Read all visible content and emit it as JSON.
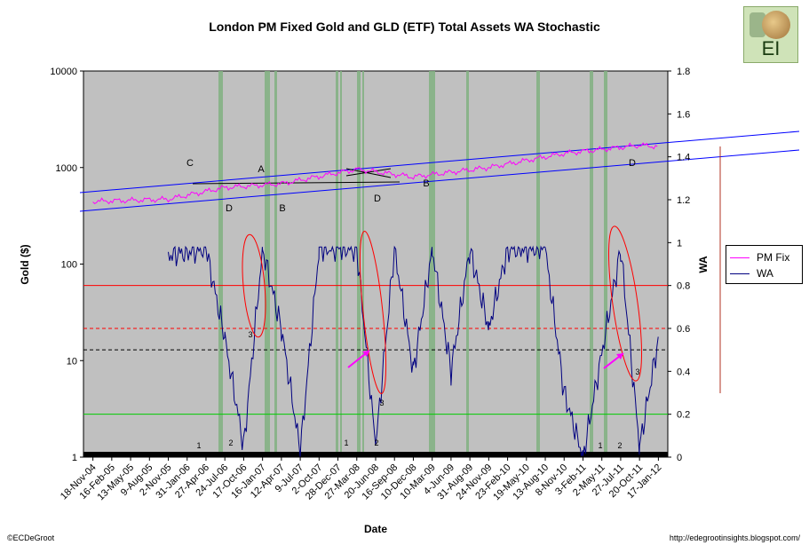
{
  "title": "London PM Fixed Gold and GLD (ETF) Total Assets WA Stochastic",
  "footer": {
    "left": "©ECDeGroot",
    "right": "http://edegrootinsights.blogspot.com/"
  },
  "logo": {
    "text": "EI"
  },
  "legend": {
    "items": [
      {
        "label": "PM Fix",
        "color": "#ff00ff"
      },
      {
        "label": "WA",
        "color": "#000080"
      }
    ]
  },
  "colors": {
    "plot_bg": "#c0c0c0",
    "gold_line": "#ff00ff",
    "wa_line": "#000080",
    "channel": "#0000ff",
    "red": "#ff0000",
    "green": "#00cc00",
    "band": "#80b080",
    "magenta_arrow": "#ff00ff"
  },
  "chart_data": {
    "type": "line",
    "title": "London PM Fixed Gold and GLD (ETF) Total Assets WA Stochastic",
    "xlabel": "Date",
    "ylabel_left": "Gold ($)",
    "ylabel_right": "WA",
    "y_left_scale": "log",
    "y_left_range": [
      1,
      10000
    ],
    "y_left_ticks": [
      "1",
      "10",
      "100",
      "1000",
      "10000"
    ],
    "y_right_range": [
      0,
      1.8
    ],
    "y_right_ticks": [
      "0",
      "0.2",
      "0.4",
      "0.6",
      "0.8",
      "1",
      "1.2",
      "1.4",
      "1.6",
      "1.8"
    ],
    "x_tick_labels": [
      "18-Nov-04",
      "16-Feb-05",
      "13-May-05",
      "9-Aug-05",
      "2-Nov-05",
      "31-Jan-06",
      "27-Apr-06",
      "24-Jul-06",
      "17-Oct-06",
      "16-Jan-07",
      "12-Apr-07",
      "9-Jul-07",
      "2-Oct-07",
      "28-Dec-07",
      "27-Mar-08",
      "20-Jun-08",
      "16-Sep-08",
      "10-Dec-08",
      "10-Mar-09",
      "4-Jun-09",
      "31-Aug-09",
      "24-Nov-09",
      "23-Feb-10",
      "19-May-10",
      "13-Aug-10",
      "8-Nov-10",
      "3-Feb-11",
      "2-May-11",
      "27-Jul-11",
      "20-Oct-11",
      "17-Jan-12"
    ],
    "series": [
      {
        "name": "PM Fix",
        "axis": "left",
        "x": [
          "18-Nov-04",
          "2-Nov-05",
          "24-Jul-06",
          "12-Apr-07",
          "27-Mar-08",
          "10-Dec-08",
          "24-Nov-09",
          "8-Nov-10",
          "20-Oct-11",
          "17-Jan-12"
        ],
        "values": [
          445,
          470,
          620,
          680,
          960,
          800,
          1000,
          1400,
          1700,
          1650
        ]
      },
      {
        "name": "WA",
        "axis": "right",
        "x": [
          "2-Nov-05",
          "27-Apr-06",
          "24-Jul-06",
          "17-Oct-06",
          "16-Jan-07",
          "12-Apr-07",
          "9-Jul-07",
          "2-Oct-07",
          "27-Mar-08",
          "20-Jun-08",
          "16-Sep-08",
          "10-Dec-08",
          "10-Mar-09",
          "4-Jun-09",
          "31-Aug-09",
          "24-Nov-09",
          "23-Feb-10",
          "13-Aug-10",
          "8-Nov-10",
          "3-Feb-11",
          "27-Jul-11",
          "20-Oct-11",
          "17-Jan-12"
        ],
        "values": [
          0.94,
          0.97,
          0.55,
          0.05,
          0.97,
          0.6,
          0.02,
          0.97,
          0.97,
          0.05,
          0.97,
          0.4,
          0.97,
          0.4,
          0.97,
          0.6,
          0.97,
          0.97,
          0.3,
          0.0,
          0.97,
          0.05,
          0.55
        ]
      }
    ],
    "reference_lines": [
      {
        "axis": "right",
        "value": 0.8,
        "color": "red",
        "style": "solid"
      },
      {
        "axis": "right",
        "value": 0.6,
        "color": "red",
        "style": "dashed"
      },
      {
        "axis": "right",
        "value": 0.5,
        "color": "black",
        "style": "dashed"
      },
      {
        "axis": "right",
        "value": 0.2,
        "color": "green",
        "style": "solid"
      }
    ],
    "annotations": [
      "C",
      "A",
      "D",
      "B",
      "D",
      "B",
      "D",
      "3",
      "3",
      "3",
      "1",
      "2",
      "1",
      "2",
      "1",
      "2"
    ],
    "grid": false,
    "legend_position": "right"
  }
}
